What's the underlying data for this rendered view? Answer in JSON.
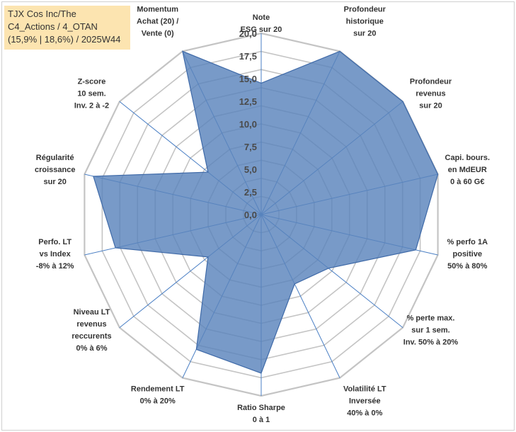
{
  "title": {
    "line1": "TJX Cos Inc/The",
    "line2": "C4_Actions / 4_OTAN",
    "line3": "(15,9% | 18,6%) / 2025W44"
  },
  "chart_data": {
    "type": "radar",
    "rmin": 0,
    "rmax": 20,
    "ticks": [
      "0,0",
      "2,5",
      "5,0",
      "7,5",
      "10,0",
      "12,5",
      "15,0",
      "17,5",
      "20,0"
    ],
    "tick_values": [
      0,
      2.5,
      5,
      7.5,
      10,
      12.5,
      15,
      17.5,
      20
    ],
    "grid_levels": 10,
    "axes": [
      {
        "label": [
          "Note",
          "ESG sur 20"
        ],
        "value": 14.5
      },
      {
        "label": [
          "Profondeur",
          "historique",
          "sur 20"
        ],
        "value": 20
      },
      {
        "label": [
          "Profondeur",
          "revenus",
          "sur 20"
        ],
        "value": 20
      },
      {
        "label": [
          "Capi. bours.",
          "en MdEUR",
          "0 à 60 G€"
        ],
        "value": 20
      },
      {
        "label": [
          "% perfo 1A",
          "positive",
          "50% à 80%"
        ],
        "value": 17.5
      },
      {
        "label": [
          "% perte max.",
          "sur 1 sem.",
          "Inv. 50% à 20%"
        ],
        "value": 9.5
      },
      {
        "label": [
          "Volatilité LT",
          "Inversée",
          "40% à 0%"
        ],
        "value": 8.5
      },
      {
        "label": [
          "Ratio Sharpe",
          "0 à 1"
        ],
        "value": 17.5
      },
      {
        "label": [
          "Rendement LT",
          "0% à 20%"
        ],
        "value": 16.5
      },
      {
        "label": [
          "Niveau LT",
          "revenus",
          "reccurents",
          "0% à 6%"
        ],
        "value": 7.5
      },
      {
        "label": [
          "Perfo. LT",
          "vs Index",
          "-8% à 12%"
        ],
        "value": 16.5
      },
      {
        "label": [
          "Régularité",
          "croissance",
          "sur 20"
        ],
        "value": 19
      },
      {
        "label": [
          "Z-score",
          "10 sem.",
          "Inv. 2 à -2"
        ],
        "value": 7.5
      },
      {
        "label": [
          "Momentum",
          "Achat (20) /",
          "Vente (0)"
        ],
        "value": 20
      }
    ],
    "colors": {
      "fill": "#5a84bc",
      "stroke": "#3f6aa8",
      "grid": "#c4c4c4",
      "spokes": "#4a7fc4"
    }
  }
}
